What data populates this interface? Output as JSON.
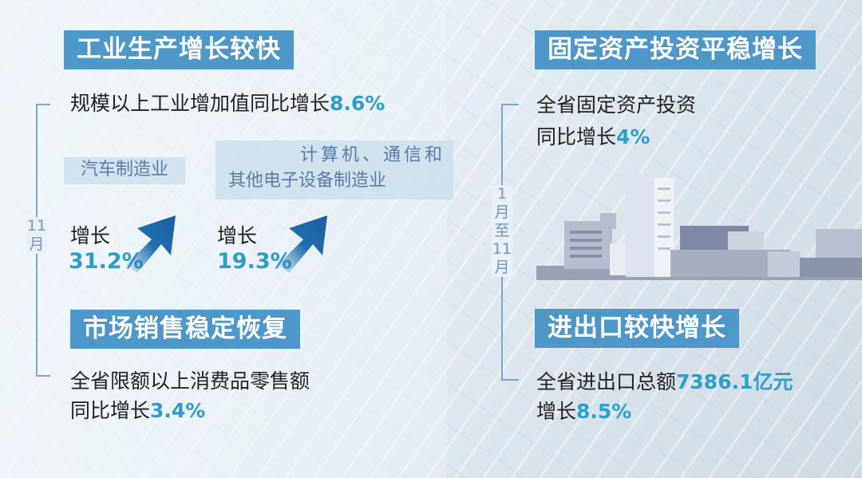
{
  "left": {
    "bracket_label": [
      "11",
      "月"
    ],
    "industry": {
      "title": "工业生产增长较快",
      "summary_prefix": "规模以上工业增加值同比增长",
      "summary_value": "8.6%",
      "sectors": [
        {
          "name": "汽车制造业",
          "growth_label": "增长",
          "growth_value": "31.2%"
        },
        {
          "name_line1": "计算机、通信和",
          "name_line2": "其他电子设备制造业",
          "growth_label": "增长",
          "growth_value": "19.3%"
        }
      ]
    },
    "retail": {
      "title": "市场销售稳定恢复",
      "line1": "全省限额以上消费品零售额",
      "line2_prefix": "同比增长",
      "line2_value": "3.4%"
    }
  },
  "right": {
    "bracket_label": [
      "1",
      "月",
      "至",
      "11",
      "月"
    ],
    "investment": {
      "title": "固定资产投资平稳增长",
      "line1": "全省固定资产投资",
      "line2_prefix": "同比增长",
      "line2_value": "4%"
    },
    "trade": {
      "title": "进出口较快增长",
      "line1_prefix": "全省进出口总额",
      "line1_value": "7386.1亿元",
      "line2_prefix": "增长",
      "line2_value": "8.5%"
    }
  },
  "colors": {
    "title_bg": "#4e97c9",
    "highlight": "#2a9fc9",
    "arrow": "#1f6fb0",
    "box_text": "#5a7ca4"
  }
}
